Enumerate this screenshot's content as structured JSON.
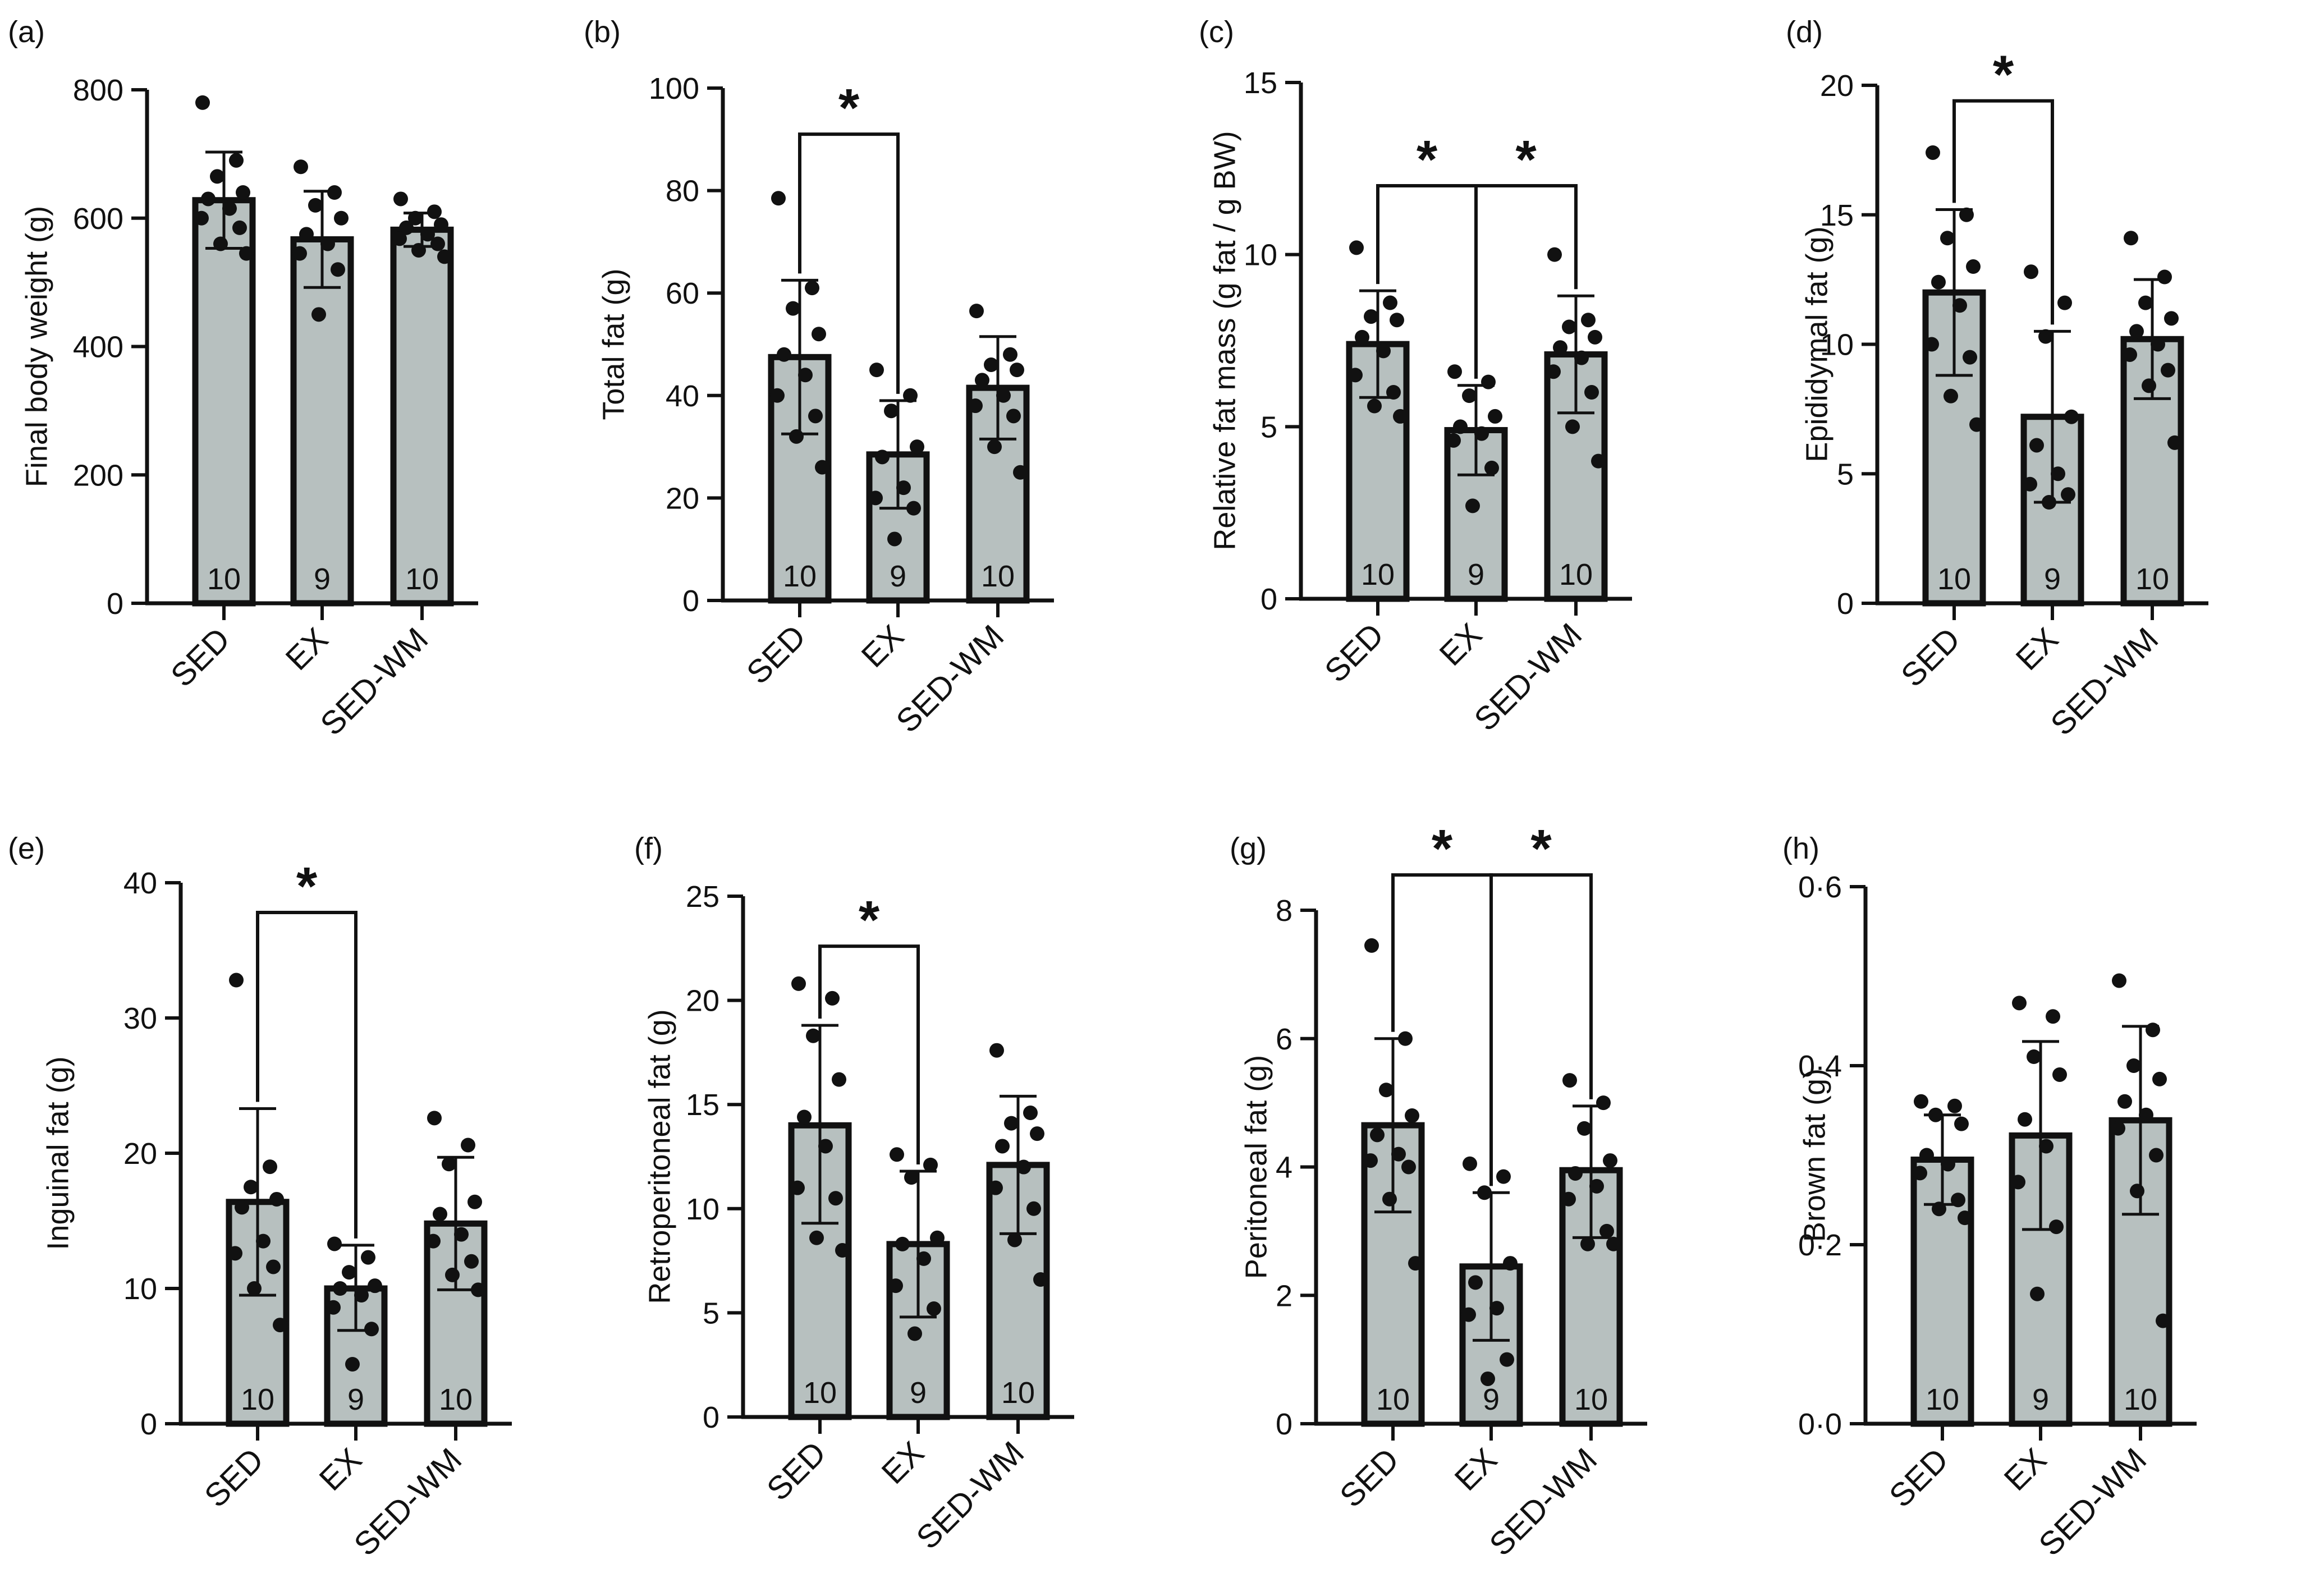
{
  "colors": {
    "bar_fill": "#b7c0bf",
    "ink": "#111111",
    "background": "#ffffff"
  },
  "chart_data": [
    {
      "panel": "(a)",
      "type": "bar",
      "ylabel": "Final body weight (g)",
      "categories": [
        "SED",
        "EX",
        "SED-WM"
      ],
      "ylim": [
        0,
        800
      ],
      "yticks": [
        "0",
        "200",
        "400",
        "600",
        "800"
      ],
      "ytick_values": [
        0,
        200,
        400,
        600,
        800
      ],
      "values": [
        628,
        567,
        582
      ],
      "errors": [
        [
          553,
          703
        ],
        [
          492,
          642
        ],
        [
          556,
          608
        ]
      ],
      "n": [
        "10",
        "9",
        "10"
      ],
      "points": [
        [
          780,
          690,
          665,
          640,
          630,
          615,
          600,
          585,
          560,
          545
        ],
        [
          680,
          640,
          620,
          600,
          575,
          560,
          545,
          520,
          450
        ],
        [
          630,
          610,
          600,
          590,
          585,
          575,
          568,
          560,
          550,
          540
        ]
      ],
      "significance": []
    },
    {
      "panel": "(b)",
      "type": "bar",
      "ylabel": "Total fat (g)",
      "categories": [
        "SED",
        "EX",
        "SED-WM"
      ],
      "ylim": [
        0,
        100
      ],
      "yticks": [
        "0",
        "20",
        "40",
        "60",
        "80",
        "100"
      ],
      "ytick_values": [
        0,
        20,
        40,
        60,
        80,
        100
      ],
      "values": [
        47.5,
        28.5,
        41.5
      ],
      "errors": [
        [
          32.5,
          62.5
        ],
        [
          18.0,
          39.0
        ],
        [
          31.5,
          51.5
        ]
      ],
      "n": [
        "10",
        "9",
        "10"
      ],
      "points": [
        [
          78.5,
          61,
          57,
          52,
          48,
          44,
          40,
          36,
          32,
          26
        ],
        [
          45,
          40,
          37,
          30,
          28,
          22,
          20,
          18,
          12
        ],
        [
          56.5,
          48,
          46,
          45,
          43,
          40,
          38,
          36,
          30,
          25
        ]
      ],
      "significance": [
        {
          "from": 0,
          "to": 1,
          "label": "*",
          "y": 91
        }
      ]
    },
    {
      "panel": "(c)",
      "type": "bar",
      "ylabel": "Relative fat mass (g fat / g BW)",
      "categories": [
        "SED",
        "EX",
        "SED-WM"
      ],
      "ylim": [
        0,
        15
      ],
      "yticks": [
        "0",
        "5",
        "10",
        "15"
      ],
      "ytick_values": [
        0,
        5,
        10,
        15
      ],
      "values": [
        7.4,
        4.9,
        7.1
      ],
      "errors": [
        [
          5.85,
          8.95
        ],
        [
          3.6,
          6.2
        ],
        [
          5.4,
          8.8
        ]
      ],
      "n": [
        "10",
        "9",
        "10"
      ],
      "points": [
        [
          10.2,
          8.6,
          8.2,
          8.1,
          7.6,
          7.2,
          6.5,
          6.0,
          5.6,
          5.3
        ],
        [
          6.6,
          6.3,
          5.9,
          5.3,
          5.0,
          4.8,
          4.6,
          3.8,
          2.7
        ],
        [
          10.0,
          8.1,
          7.9,
          7.6,
          7.3,
          7.0,
          6.6,
          6.0,
          5.0,
          4.0
        ]
      ],
      "significance": [
        {
          "from": 0,
          "to": 1,
          "label": "*",
          "y": 12.0
        },
        {
          "from": 1,
          "to": 2,
          "label": "*",
          "y": 12.0
        }
      ]
    },
    {
      "panel": "(d)",
      "type": "bar",
      "ylabel": "Epididymal fat (g)",
      "categories": [
        "SED",
        "EX",
        "SED-WM"
      ],
      "ylim": [
        0,
        20
      ],
      "yticks": [
        "0",
        "5",
        "10",
        "15",
        "20"
      ],
      "ytick_values": [
        0,
        5,
        10,
        15,
        20
      ],
      "values": [
        12.0,
        7.2,
        10.2
      ],
      "errors": [
        [
          8.8,
          15.2
        ],
        [
          3.9,
          10.5
        ],
        [
          7.9,
          12.5
        ]
      ],
      "n": [
        "10",
        "9",
        "10"
      ],
      "points": [
        [
          17.4,
          15.0,
          14.1,
          13.0,
          12.4,
          11.5,
          10.0,
          9.5,
          8.0,
          6.9
        ],
        [
          12.8,
          11.6,
          10.3,
          7.2,
          6.1,
          5.0,
          4.6,
          4.2,
          3.9
        ],
        [
          14.1,
          12.6,
          11.6,
          11.0,
          10.5,
          10.0,
          9.6,
          9.0,
          8.4,
          6.2
        ]
      ],
      "significance": [
        {
          "from": 0,
          "to": 1,
          "label": "*",
          "y": 19.4
        }
      ]
    },
    {
      "panel": "(e)",
      "type": "bar",
      "ylabel": "Inguinal fat (g)",
      "categories": [
        "SED",
        "EX",
        "SED-WM"
      ],
      "ylim": [
        0,
        40
      ],
      "yticks": [
        "0",
        "10",
        "20",
        "30",
        "40"
      ],
      "ytick_values": [
        0,
        10,
        20,
        30,
        40
      ],
      "values": [
        16.4,
        10.0,
        14.8
      ],
      "errors": [
        [
          9.5,
          23.3
        ],
        [
          6.9,
          13.2
        ],
        [
          9.9,
          19.7
        ]
      ],
      "n": [
        "10",
        "9",
        "10"
      ],
      "points": [
        [
          32.8,
          19.0,
          17.5,
          16.6,
          16.0,
          13.5,
          12.6,
          11.6,
          10.0,
          7.3
        ],
        [
          13.3,
          12.3,
          11.2,
          10.2,
          10.0,
          9.5,
          8.6,
          7.0,
          4.4
        ],
        [
          22.6,
          20.6,
          19.2,
          16.4,
          15.5,
          14.0,
          13.5,
          12.0,
          11.0,
          9.9
        ]
      ],
      "significance": [
        {
          "from": 0,
          "to": 1,
          "label": "*",
          "y": 37.8
        }
      ]
    },
    {
      "panel": "(f)",
      "type": "bar",
      "ylabel": "Retroperitoneal fat (g)",
      "categories": [
        "SED",
        "EX",
        "SED-WM"
      ],
      "ylim": [
        0,
        25
      ],
      "yticks": [
        "0",
        "5",
        "10",
        "15",
        "20",
        "25"
      ],
      "ytick_values": [
        0,
        5,
        10,
        15,
        20,
        25
      ],
      "values": [
        14.0,
        8.3,
        12.1
      ],
      "errors": [
        [
          9.3,
          18.8
        ],
        [
          4.8,
          11.8
        ],
        [
          8.8,
          15.4
        ]
      ],
      "n": [
        "10",
        "9",
        "10"
      ],
      "points": [
        [
          20.8,
          20.1,
          18.3,
          16.2,
          14.4,
          13.0,
          11.0,
          10.5,
          8.6,
          8.0
        ],
        [
          12.6,
          12.1,
          11.5,
          8.6,
          8.3,
          7.6,
          6.3,
          5.2,
          4.0
        ],
        [
          17.6,
          14.6,
          14.1,
          13.6,
          13.0,
          12.0,
          11.0,
          10.0,
          8.5,
          6.6
        ]
      ],
      "significance": [
        {
          "from": 0,
          "to": 1,
          "label": "*",
          "y": 22.6
        }
      ]
    },
    {
      "panel": "(g)",
      "type": "bar",
      "ylabel": "Peritoneal fat (g)",
      "categories": [
        "SED",
        "EX",
        "SED-WM"
      ],
      "ylim": [
        0,
        8
      ],
      "yticks": [
        "0",
        "2",
        "4",
        "6",
        "8"
      ],
      "ytick_values": [
        0,
        2,
        4,
        6,
        8
      ],
      "values": [
        4.65,
        2.45,
        3.95
      ],
      "errors": [
        [
          3.3,
          6.0
        ],
        [
          1.3,
          3.6
        ],
        [
          2.9,
          4.95
        ]
      ],
      "n": [
        "10",
        "9",
        "10"
      ],
      "points": [
        [
          7.45,
          6.0,
          5.2,
          4.8,
          4.5,
          4.2,
          4.1,
          4.0,
          3.5,
          2.5
        ],
        [
          4.05,
          3.85,
          3.6,
          2.5,
          2.2,
          1.8,
          1.7,
          1.0,
          0.7
        ],
        [
          5.35,
          5.0,
          4.6,
          4.1,
          3.9,
          3.7,
          3.5,
          3.0,
          2.8,
          2.8
        ]
      ],
      "significance": [
        {
          "from": 0,
          "to": 1,
          "label": "*",
          "y": 8.55
        },
        {
          "from": 1,
          "to": 2,
          "label": "*",
          "y": 8.55
        }
      ]
    },
    {
      "panel": "(h)",
      "type": "bar",
      "ylabel": "Brown fat (g)",
      "categories": [
        "SED",
        "EX",
        "SED-WM"
      ],
      "ylim": [
        0,
        0.6
      ],
      "yticks": [
        "0·0",
        "0·2",
        "0·4",
        "0·6"
      ],
      "ytick_values": [
        0,
        0.2,
        0.4,
        0.6
      ],
      "values": [
        0.295,
        0.322,
        0.339
      ],
      "errors": [
        [
          0.245,
          0.345
        ],
        [
          0.217,
          0.427
        ],
        [
          0.234,
          0.444
        ]
      ],
      "n": [
        "10",
        "9",
        "10"
      ],
      "points": [
        [
          0.36,
          0.355,
          0.345,
          0.335,
          0.3,
          0.29,
          0.28,
          0.25,
          0.24,
          0.23
        ],
        [
          0.47,
          0.455,
          0.41,
          0.39,
          0.34,
          0.31,
          0.27,
          0.22,
          0.145
        ],
        [
          0.495,
          0.44,
          0.4,
          0.385,
          0.36,
          0.345,
          0.33,
          0.3,
          0.26,
          0.115
        ]
      ],
      "significance": []
    }
  ]
}
